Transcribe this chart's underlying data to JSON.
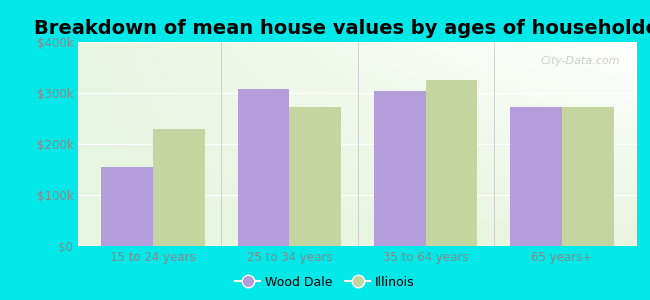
{
  "title": "Breakdown of mean house values by ages of householders",
  "categories": [
    "15 to 24 years",
    "25 to 34 years",
    "35 to 64 years",
    "65 years+"
  ],
  "wood_dale": [
    155000,
    308000,
    303000,
    272000
  ],
  "illinois": [
    230000,
    272000,
    325000,
    272000
  ],
  "wood_dale_color": "#b39ddb",
  "illinois_color": "#c5d5a0",
  "ylim": [
    0,
    400000
  ],
  "yticks": [
    0,
    100000,
    200000,
    300000,
    400000
  ],
  "ytick_labels": [
    "$0",
    "$100k",
    "$200k",
    "$300k",
    "$400k"
  ],
  "background_color": "#00e8e8",
  "plot_bg_top_left": "#e8f5e0",
  "plot_bg_top_right": "#ffffff",
  "title_fontsize": 14,
  "legend_label_1": "Wood Dale",
  "legend_label_2": "Illinois",
  "watermark": "City-Data.com",
  "bar_width": 0.38,
  "tick_label_color": "#888888",
  "tick_label_fontsize": 8.5
}
